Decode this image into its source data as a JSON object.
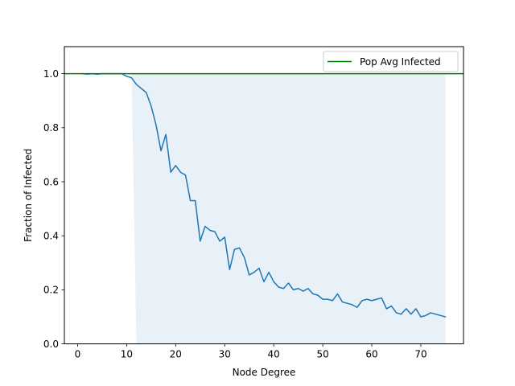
{
  "chart_data": {
    "type": "line",
    "title": "",
    "xlabel": "Node Degree",
    "ylabel": "Fraction of Infected",
    "xlim": [
      -2.7,
      78.7
    ],
    "ylim": [
      0.0,
      1.1
    ],
    "xticks": [
      0,
      10,
      20,
      30,
      40,
      50,
      60,
      70
    ],
    "yticks": [
      0.0,
      0.2,
      0.4,
      0.6,
      0.8,
      1.0
    ],
    "grid": false,
    "legend_position": "top-right",
    "colors": {
      "series": "#1f77b4",
      "reference": "#008000",
      "band": "#dbe8f5"
    },
    "reference_line": {
      "name": "Pop Avg Infected",
      "y": 1.0
    },
    "band": {
      "upper": [
        [
          11,
          1.0
        ],
        [
          75,
          1.0
        ]
      ],
      "lower": [
        [
          11,
          1.0
        ],
        [
          12,
          0.0
        ],
        [
          75,
          0.0
        ]
      ]
    },
    "series": [
      {
        "x": [
          1,
          2,
          3,
          4,
          5,
          6,
          7,
          8,
          9,
          10,
          11,
          12,
          14,
          15,
          16,
          17,
          18,
          19,
          20,
          21,
          22,
          23,
          24,
          25,
          26,
          27,
          28,
          29,
          30,
          31,
          32,
          33,
          34,
          35,
          36,
          37,
          38,
          39,
          40,
          41,
          42,
          43,
          44,
          45,
          46,
          47,
          48,
          49,
          50,
          51,
          52,
          53,
          54,
          55,
          56,
          57,
          58,
          59,
          60,
          61,
          62,
          63,
          64,
          65,
          66,
          67,
          68,
          69,
          70,
          71,
          72,
          75
        ],
        "y": [
          1.0,
          0.998,
          1.0,
          0.998,
          1.0,
          1.0,
          1.0,
          1.0,
          1.0,
          0.99,
          0.985,
          0.96,
          0.93,
          0.88,
          0.81,
          0.715,
          0.775,
          0.635,
          0.66,
          0.635,
          0.625,
          0.53,
          0.53,
          0.38,
          0.435,
          0.42,
          0.415,
          0.38,
          0.395,
          0.275,
          0.35,
          0.355,
          0.32,
          0.255,
          0.265,
          0.28,
          0.23,
          0.265,
          0.23,
          0.21,
          0.205,
          0.225,
          0.2,
          0.205,
          0.195,
          0.205,
          0.185,
          0.18,
          0.165,
          0.165,
          0.16,
          0.185,
          0.155,
          0.15,
          0.145,
          0.135,
          0.16,
          0.165,
          0.16,
          0.165,
          0.17,
          0.13,
          0.14,
          0.115,
          0.11,
          0.13,
          0.11,
          0.13,
          0.1,
          0.105,
          0.115,
          0.1
        ]
      }
    ]
  }
}
